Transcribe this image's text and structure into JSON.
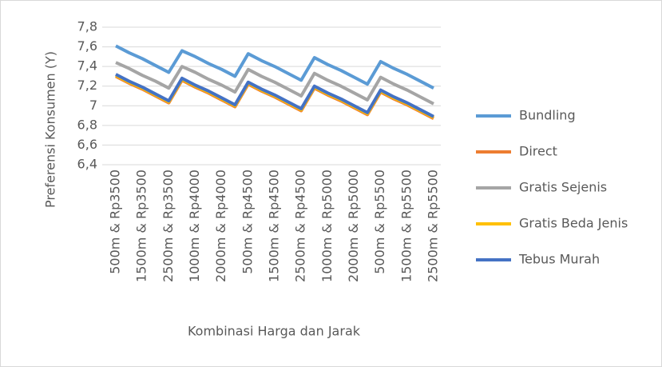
{
  "chart_data": {
    "type": "line",
    "x_label": "Kombinasi Harga dan Jarak",
    "y_label": "Preferensi Konsumen (Y)",
    "categories": [
      "500m & Rp3500",
      null,
      "1500m & Rp3500",
      null,
      "2500m & Rp3500",
      null,
      "1000m & Rp4000",
      null,
      "2000m & Rp4000",
      null,
      "500m & Rp4500",
      null,
      "1500m & Rp4500",
      null,
      "2500m & Rp4500",
      null,
      "1000m & Rp5000",
      null,
      "2000m & Rp5000",
      null,
      "500m & Rp5500",
      null,
      "1500m & Rp5500",
      null,
      "2500m & Rp5500"
    ],
    "ylim": [
      6.4,
      7.8
    ],
    "yticks": [
      {
        "value": 7.8,
        "label": "7,8"
      },
      {
        "value": 7.6,
        "label": "7,6"
      },
      {
        "value": 7.4,
        "label": "7,4"
      },
      {
        "value": 7.2,
        "label": "7,2"
      },
      7,
      {
        "value": 6.8,
        "label": "6,8"
      },
      {
        "value": 6.6,
        "label": "6,6"
      },
      {
        "value": 6.4,
        "label": "6,4"
      }
    ],
    "grid": true,
    "legend": "right",
    "series": [
      {
        "name": "Bundling",
        "color": "#5b9bd5",
        "values": [
          7.61,
          7.54,
          7.48,
          7.41,
          7.34,
          7.56,
          7.5,
          7.43,
          7.37,
          7.3,
          7.53,
          7.46,
          7.4,
          7.33,
          7.26,
          7.49,
          7.42,
          7.36,
          7.29,
          7.22,
          7.45,
          7.38,
          7.32,
          7.25,
          7.18
        ]
      },
      {
        "name": "Direct",
        "color": "#ed7d31",
        "values": [
          7.3,
          7.23,
          7.17,
          7.1,
          7.03,
          7.26,
          7.19,
          7.13,
          7.06,
          6.99,
          7.22,
          7.15,
          7.09,
          7.02,
          6.95,
          7.18,
          7.11,
          7.05,
          6.98,
          6.91,
          7.14,
          7.07,
          7.01,
          6.94,
          6.87
        ]
      },
      {
        "name": "Gratis Sejenis",
        "color": "#a5a5a5",
        "values": [
          7.44,
          7.38,
          7.31,
          7.25,
          7.18,
          7.4,
          7.34,
          7.27,
          7.21,
          7.14,
          7.37,
          7.3,
          7.24,
          7.17,
          7.1,
          7.33,
          7.26,
          7.2,
          7.13,
          7.06,
          7.29,
          7.22,
          7.16,
          7.09,
          7.02
        ]
      },
      {
        "name": "Gratis Beda Jenis",
        "color": "#ffc000",
        "values": [
          7.31,
          7.24,
          7.18,
          7.11,
          7.04,
          7.27,
          7.2,
          7.14,
          7.07,
          7.0,
          7.23,
          7.16,
          7.1,
          7.03,
          6.96,
          7.19,
          7.12,
          7.06,
          6.99,
          6.92,
          7.15,
          7.08,
          7.02,
          6.95,
          6.88
        ]
      },
      {
        "name": "Tebus Murah",
        "color": "#4472c4",
        "values": [
          7.32,
          7.25,
          7.19,
          7.12,
          7.05,
          7.28,
          7.21,
          7.15,
          7.08,
          7.01,
          7.24,
          7.17,
          7.11,
          7.04,
          6.97,
          7.2,
          7.13,
          7.07,
          7.0,
          6.93,
          7.16,
          7.09,
          7.03,
          6.96,
          6.89
        ]
      }
    ]
  }
}
